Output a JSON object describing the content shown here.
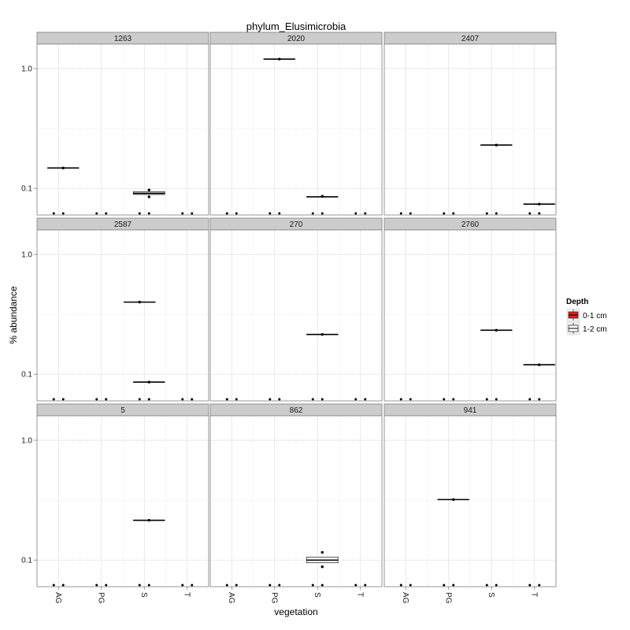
{
  "chart_data": {
    "type": "boxplot",
    "title": "phylum_Elusimicrobia",
    "xlabel": "vegetation",
    "ylabel": "% abundance",
    "y_scale": "log10",
    "ylim": [
      0.06,
      1.6
    ],
    "y_ticks": [
      {
        "label": "0.1",
        "value": 0.1
      },
      {
        "label": "1.0",
        "value": 1.0
      }
    ],
    "categories": [
      "AG",
      "PG",
      "S",
      "T"
    ],
    "grid": true,
    "legend": {
      "title": "Depth",
      "placement": "right",
      "entries": [
        {
          "label": "0-1 cm",
          "color": "#e41a1c"
        },
        {
          "label": "1-2 cm",
          "color": "#ffffff"
        }
      ]
    },
    "facets": [
      {
        "label": "1263",
        "boxes": [
          {
            "category": "AG",
            "depth": "1-2 cm",
            "median": 0.148,
            "q1": 0.148,
            "q3": 0.148,
            "points": [
              0.148
            ]
          },
          {
            "category": "S",
            "depth": "1-2 cm",
            "median": 0.091,
            "q1": 0.089,
            "q3": 0.094,
            "points": [
              0.097,
              0.085
            ]
          }
        ]
      },
      {
        "label": "2020",
        "boxes": [
          {
            "category": "PG",
            "depth": "1-2 cm",
            "median": 1.2,
            "q1": 1.2,
            "q3": 1.2,
            "points": [
              1.2
            ]
          },
          {
            "category": "S",
            "depth": "1-2 cm",
            "median": 0.085,
            "q1": 0.085,
            "q3": 0.085,
            "points": [
              0.086
            ]
          }
        ]
      },
      {
        "label": "2407",
        "boxes": [
          {
            "category": "S",
            "depth": "1-2 cm",
            "median": 0.23,
            "q1": 0.23,
            "q3": 0.23,
            "points": [
              0.23
            ]
          },
          {
            "category": "T",
            "depth": "1-2 cm",
            "median": 0.074,
            "q1": 0.074,
            "q3": 0.074,
            "points": [
              0.074
            ]
          }
        ]
      },
      {
        "label": "2587",
        "boxes": [
          {
            "category": "S",
            "depth": "0-1 cm",
            "median": 0.4,
            "q1": 0.4,
            "q3": 0.4,
            "points": [
              0.4
            ]
          },
          {
            "category": "S",
            "depth": "1-2 cm",
            "median": 0.086,
            "q1": 0.086,
            "q3": 0.086,
            "points": [
              0.086
            ]
          }
        ]
      },
      {
        "label": "270",
        "boxes": [
          {
            "category": "S",
            "depth": "1-2 cm",
            "median": 0.215,
            "q1": 0.215,
            "q3": 0.215,
            "points": [
              0.215
            ]
          }
        ]
      },
      {
        "label": "2760",
        "boxes": [
          {
            "category": "S",
            "depth": "1-2 cm",
            "median": 0.233,
            "q1": 0.233,
            "q3": 0.233,
            "points": [
              0.233
            ]
          },
          {
            "category": "T",
            "depth": "1-2 cm",
            "median": 0.12,
            "q1": 0.12,
            "q3": 0.12,
            "points": [
              0.12
            ]
          }
        ]
      },
      {
        "label": "5",
        "boxes": [
          {
            "category": "S",
            "depth": "1-2 cm",
            "median": 0.215,
            "q1": 0.215,
            "q3": 0.215,
            "points": [
              0.215
            ]
          }
        ]
      },
      {
        "label": "862",
        "boxes": [
          {
            "category": "S",
            "depth": "1-2 cm",
            "median": 0.1,
            "q1": 0.095,
            "q3": 0.106,
            "points": [
              0.116,
              0.088
            ]
          }
        ]
      },
      {
        "label": "941",
        "boxes": [
          {
            "category": "PG",
            "depth": "1-2 cm",
            "median": 0.32,
            "q1": 0.32,
            "q3": 0.32,
            "points": [
              0.32
            ]
          }
        ]
      }
    ]
  }
}
